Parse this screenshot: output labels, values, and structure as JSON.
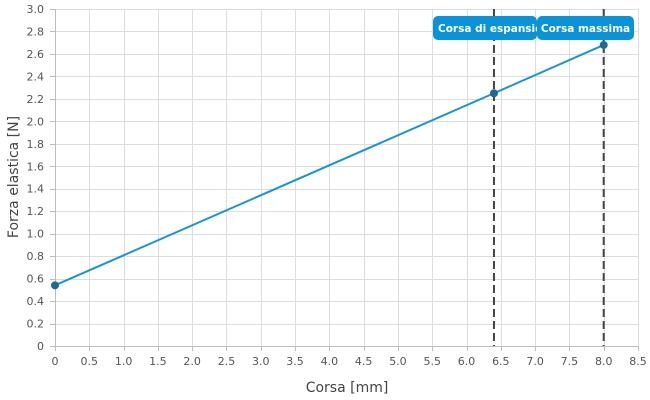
{
  "chart_data": {
    "type": "line",
    "xlabel": "Corsa [mm]",
    "ylabel": "Forza elastica [N]",
    "xlim": [
      0,
      8.5
    ],
    "ylim": [
      0,
      3.0
    ],
    "x_ticks": [
      "0",
      "0.5",
      "1.0",
      "1.5",
      "2.0",
      "2.5",
      "3.0",
      "3.5",
      "4.0",
      "4.5",
      "5.0",
      "5.5",
      "6.0",
      "6.5",
      "7.0",
      "7.5",
      "8.0",
      "8.5"
    ],
    "y_ticks": [
      "0",
      "0.2",
      "0.4",
      "0.6",
      "0.8",
      "1.0",
      "1.2",
      "1.4",
      "1.6",
      "1.8",
      "2.0",
      "2.2",
      "2.4",
      "2.6",
      "2.8",
      "3.0"
    ],
    "grid": true,
    "series": [
      {
        "points": [
          {
            "x": 0,
            "y": 0.54
          },
          {
            "x": 6.4,
            "y": 2.25
          },
          {
            "x": 8.0,
            "y": 2.68
          }
        ]
      }
    ],
    "markers": [
      {
        "x": 6.4,
        "label": "Corsa di espansione"
      },
      {
        "x": 8.0,
        "label": "Corsa massima"
      }
    ]
  },
  "colors": {
    "series": "#1a94d6",
    "point": "#1c6a96",
    "annotation_bg": "#0a93d8",
    "marker_line": "#444444"
  }
}
